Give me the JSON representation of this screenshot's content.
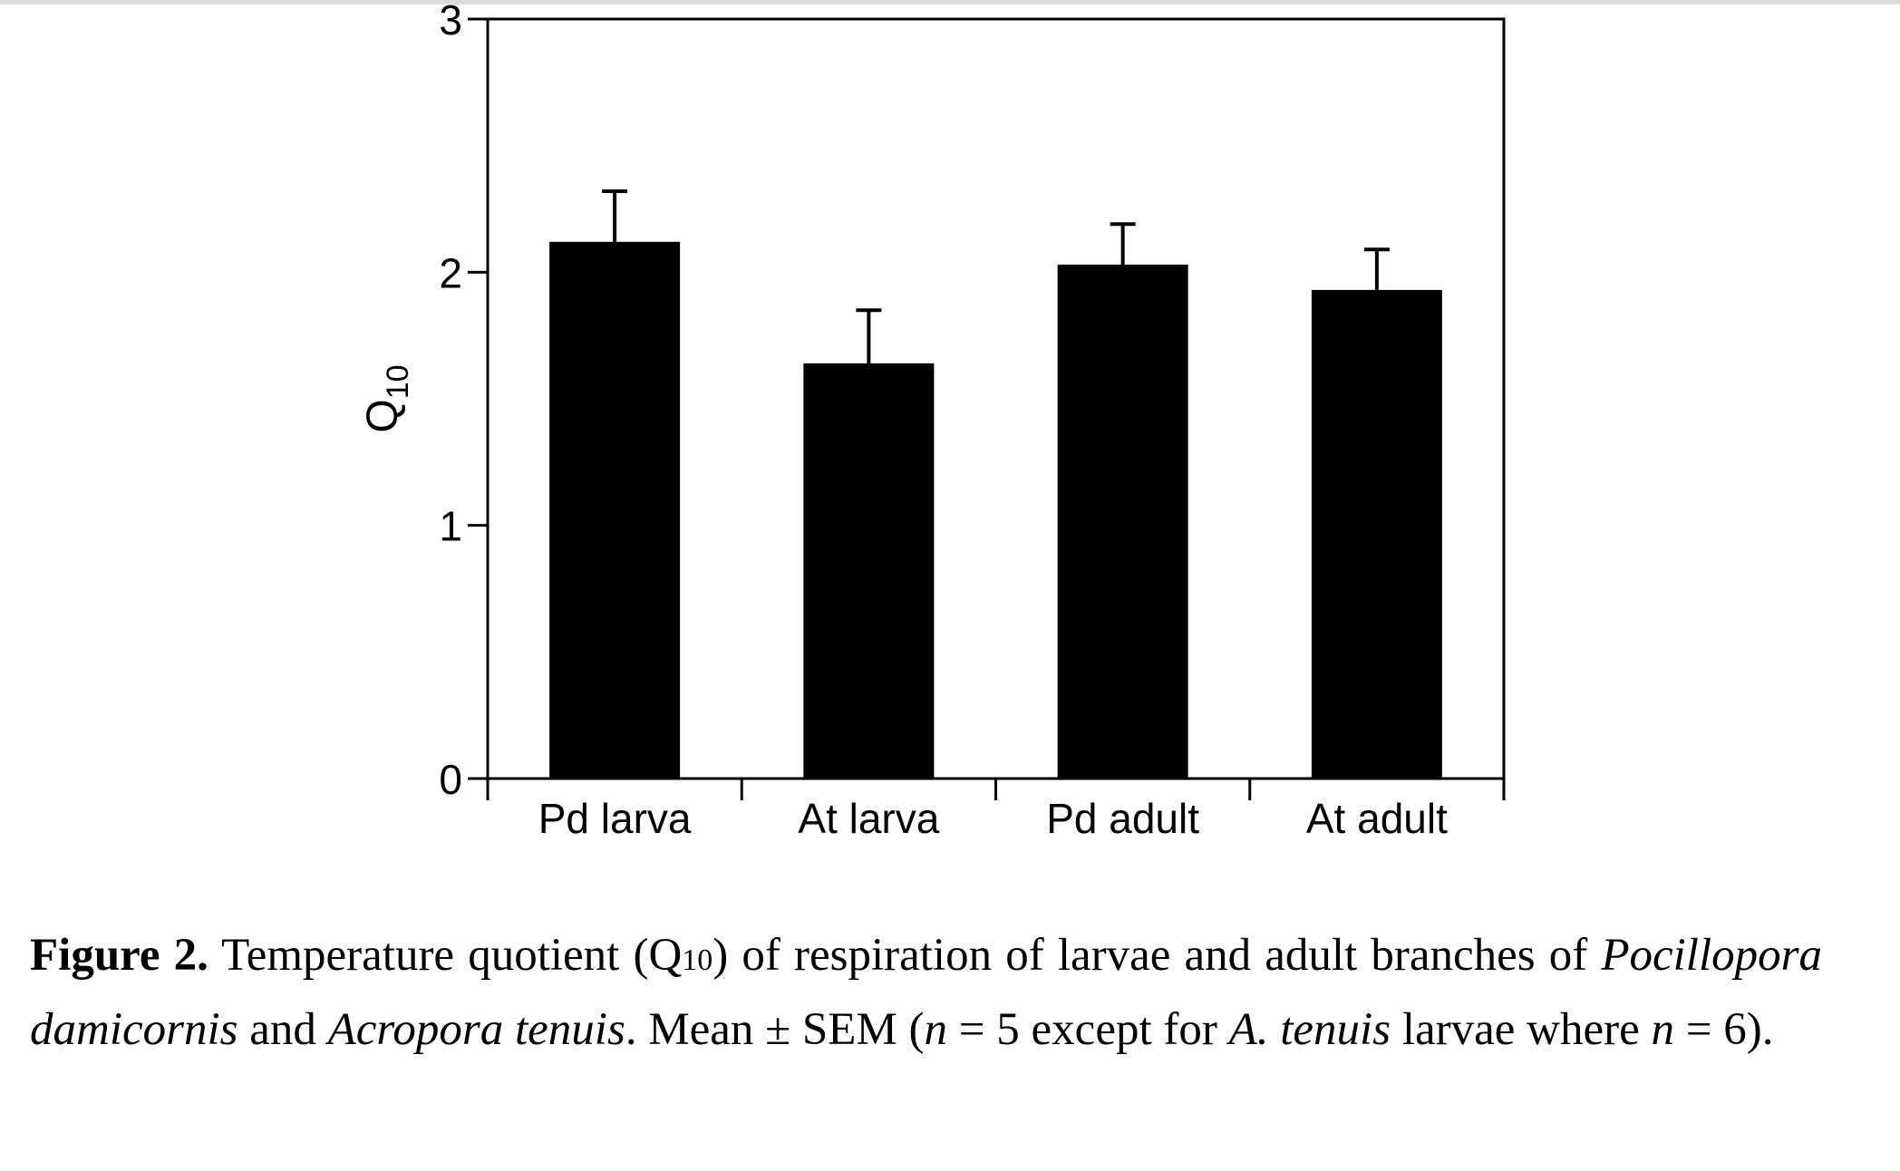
{
  "chart_data": {
    "type": "bar",
    "categories": [
      "Pd larva",
      "At larva",
      "Pd adult",
      "At adult"
    ],
    "values": [
      2.12,
      1.64,
      2.03,
      1.93
    ],
    "errors": [
      0.2,
      0.21,
      0.16,
      0.16
    ],
    "ylabel": "Q",
    "ylabel_sub": "10",
    "ylim": [
      0,
      3
    ],
    "yticks": [
      "0",
      "1",
      "2",
      "3"
    ],
    "grid": false,
    "bar_color": "#000000"
  },
  "caption": {
    "label": "Figure 2.",
    "text_1": " Temperature quotient (Q",
    "sub": "10",
    "text_2": ") of respiration of larvae and adult branches of ",
    "species_1": "Pocillopora damicornis",
    "and": " and ",
    "species_2": "Acropora tenuis",
    "text_3": ". Mean ± SEM (",
    "n_1": "n",
    "text_4": " = 5 except for ",
    "species_3": "A. tenuis",
    "text_5": " larvae where ",
    "n_2": "n",
    "text_6": " = 6)."
  }
}
